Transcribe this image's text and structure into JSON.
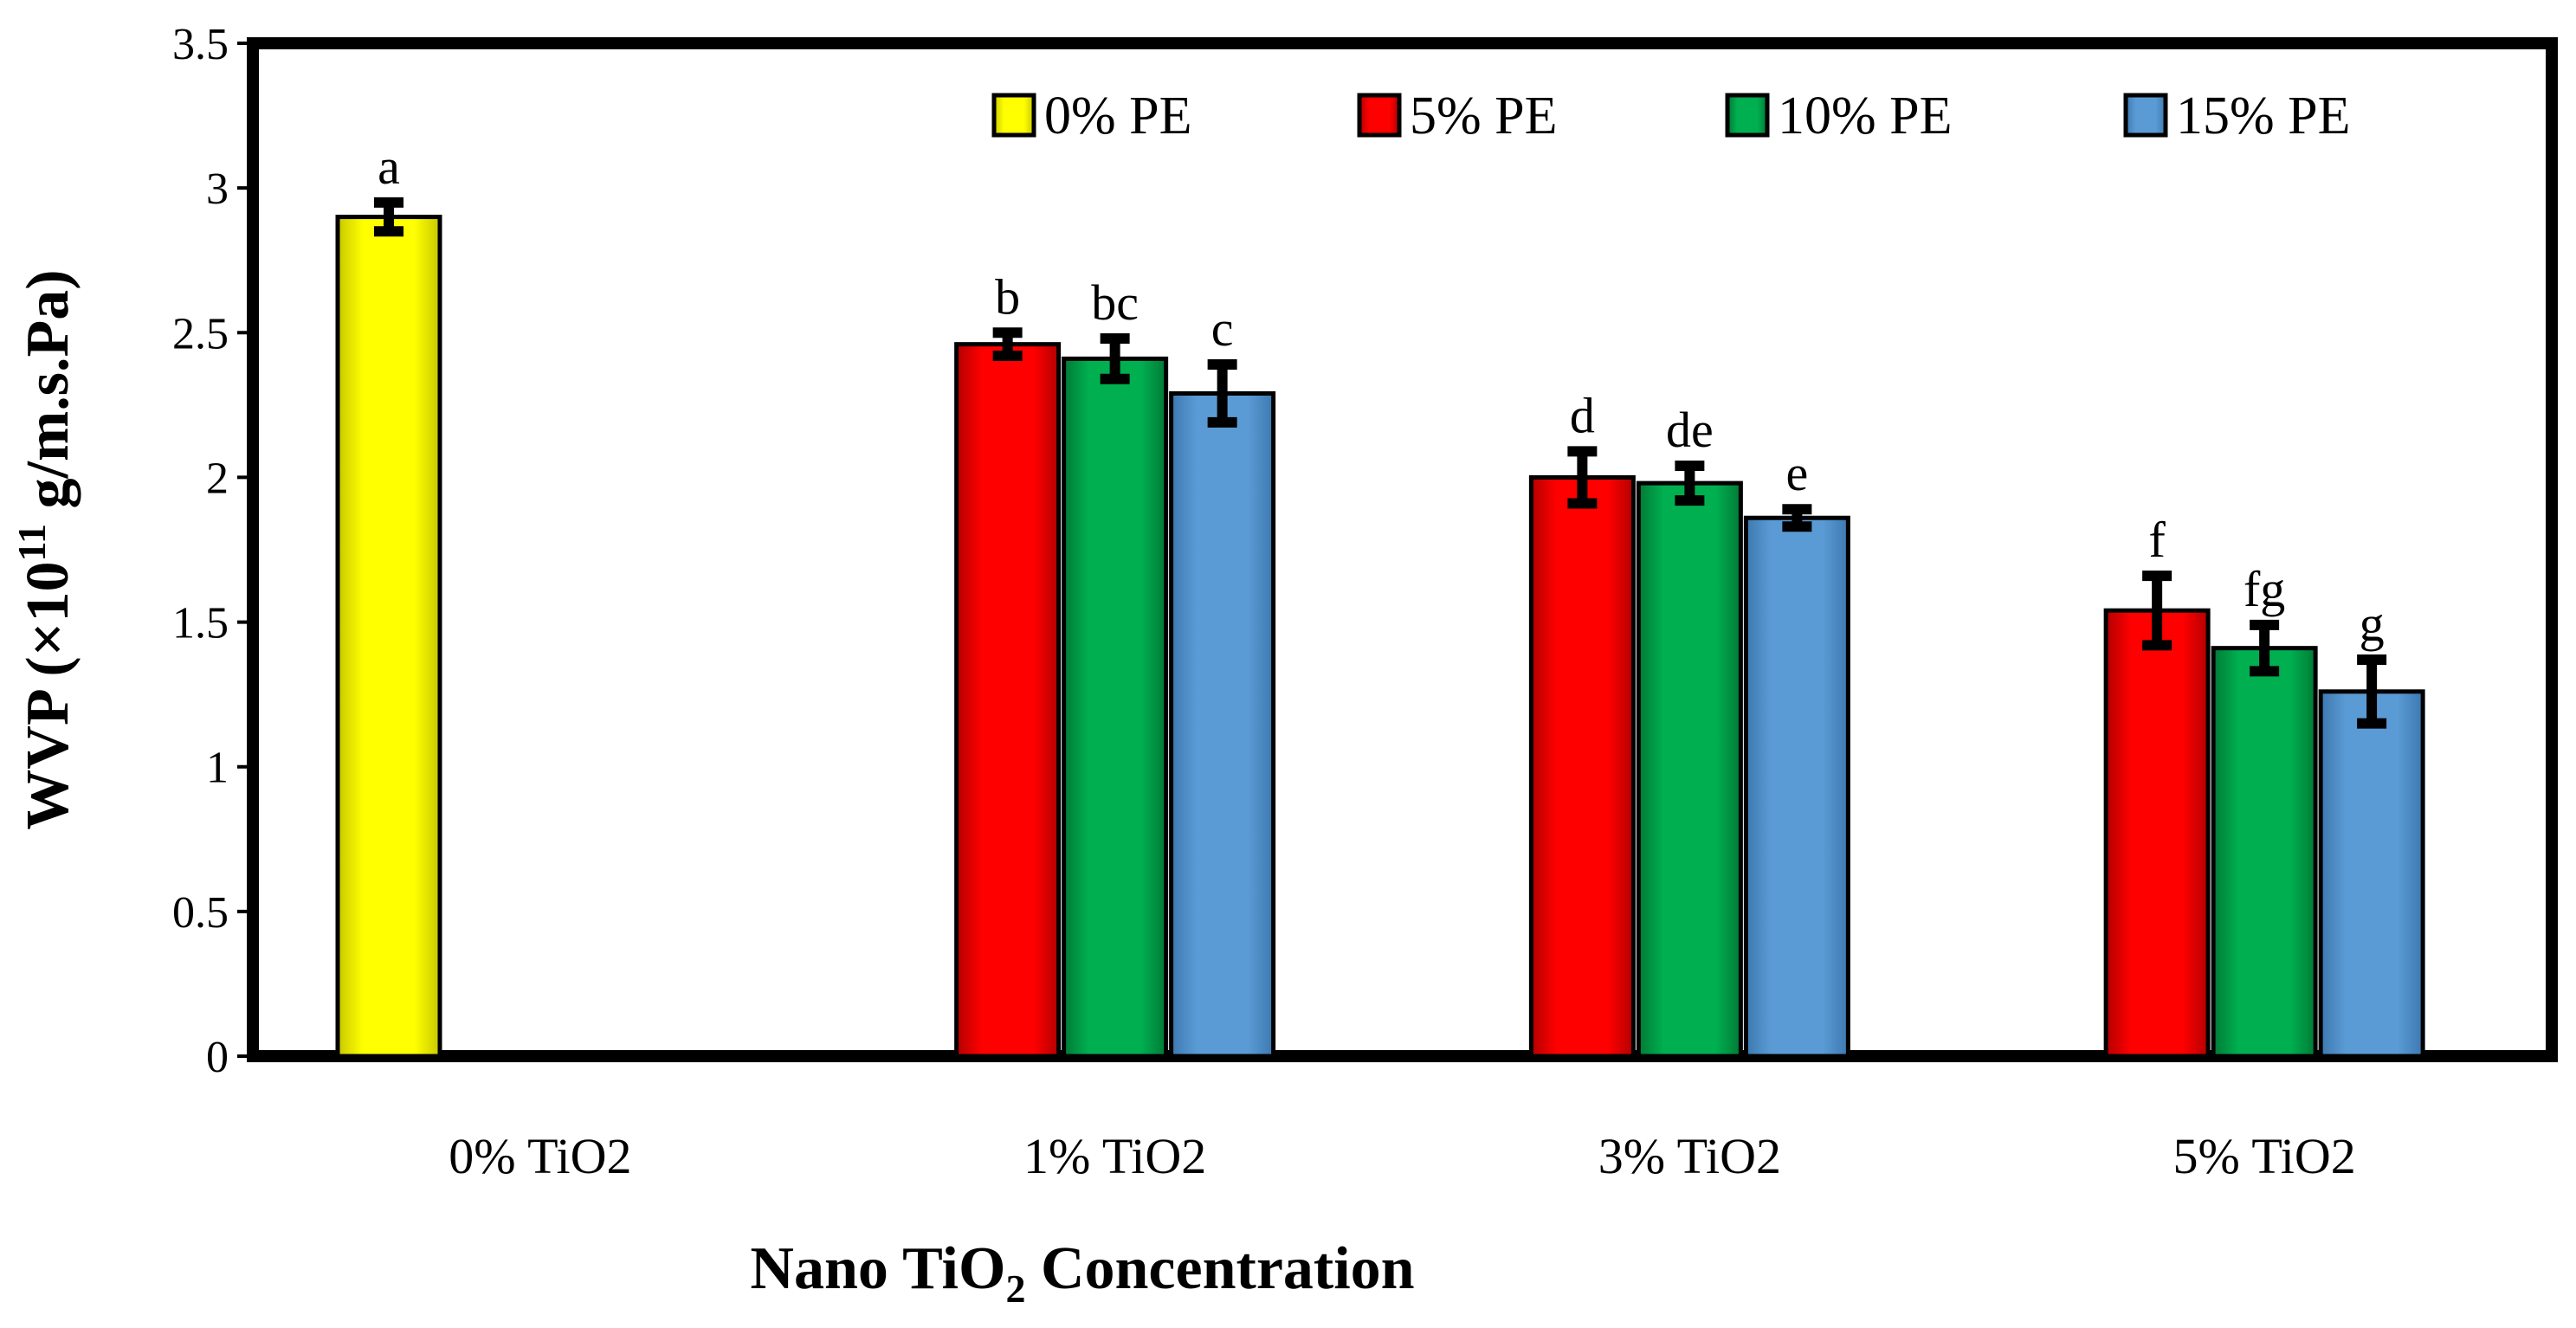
{
  "chart_data": {
    "type": "bar",
    "title": "",
    "xlabel": "Nano TiO2 Concentration",
    "xlabel_main": "Nano TiO",
    "xlabel_sub": "2",
    "xlabel_tail": " Concentration",
    "ylabel": "WVP (×10^11 g/m.s.Pa)",
    "ylabel_main": "WVP (×10",
    "ylabel_sup": "11",
    "ylabel_tail": " g/m.s.Pa)",
    "ylim": [
      0,
      3.5
    ],
    "yticks": [
      "0",
      "0.5",
      "1",
      "1.5",
      "2",
      "2.5",
      "3",
      "3.5"
    ],
    "grid": false,
    "legend_position": "top-right",
    "categories": [
      "0% TiO2",
      "1% TiO2",
      "3% TiO2",
      "5% TiO2"
    ],
    "series": [
      {
        "name": "0% PE",
        "color": "#ffff00",
        "dark": "#c8c800",
        "values": [
          2.9,
          null,
          null,
          null
        ],
        "errors": [
          0.05,
          null,
          null,
          null
        ],
        "labels": [
          "a",
          "",
          "",
          ""
        ]
      },
      {
        "name": "5% PE",
        "color": "#ff0000",
        "dark": "#b30000",
        "values": [
          null,
          2.46,
          2.0,
          1.54
        ],
        "errors": [
          null,
          0.04,
          0.09,
          0.12
        ],
        "labels": [
          "",
          "b",
          "d",
          "f"
        ]
      },
      {
        "name": "10% PE",
        "color": "#00b050",
        "dark": "#007a36",
        "values": [
          null,
          2.41,
          1.98,
          1.41
        ],
        "errors": [
          null,
          0.07,
          0.06,
          0.08
        ],
        "labels": [
          "",
          "bc",
          "de",
          "fg"
        ]
      },
      {
        "name": "15% PE",
        "color": "#5b9bd5",
        "dark": "#3d78b0",
        "values": [
          null,
          2.29,
          1.86,
          1.26
        ],
        "errors": [
          null,
          0.1,
          0.03,
          0.11
        ],
        "labels": [
          "",
          "c",
          "e",
          "g"
        ]
      }
    ]
  }
}
